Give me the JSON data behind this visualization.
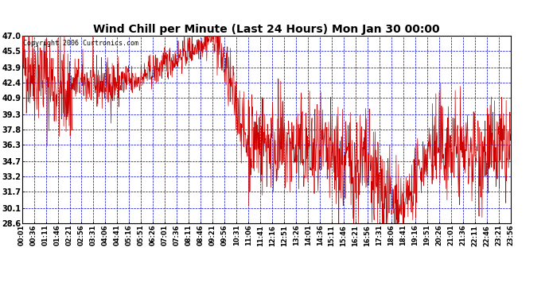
{
  "title": "Wind Chill per Minute (Last 24 Hours) Mon Jan 30 00:00",
  "copyright": "Copyright 2006 Curtronics.com",
  "line_color": "#cc0000",
  "background_color": "#ffffff",
  "grid_color": "#0000cc",
  "text_color": "#000000",
  "yticks": [
    28.6,
    30.1,
    31.7,
    33.2,
    34.7,
    36.3,
    37.8,
    39.3,
    40.9,
    42.4,
    43.9,
    45.5,
    47.0
  ],
  "ymin": 28.6,
  "ymax": 47.0,
  "xtick_labels": [
    "00:01",
    "00:36",
    "01:11",
    "01:46",
    "02:21",
    "02:56",
    "03:31",
    "04:06",
    "04:41",
    "05:16",
    "05:51",
    "06:26",
    "07:01",
    "07:36",
    "08:11",
    "08:46",
    "09:21",
    "09:56",
    "10:31",
    "11:06",
    "11:41",
    "12:16",
    "12:51",
    "13:26",
    "14:01",
    "14:36",
    "15:11",
    "15:46",
    "16:21",
    "16:56",
    "17:31",
    "18:06",
    "18:41",
    "19:16",
    "19:51",
    "20:26",
    "21:01",
    "21:36",
    "22:11",
    "22:46",
    "23:21",
    "23:56"
  ],
  "title_fontsize": 10,
  "copyright_fontsize": 6,
  "tick_fontsize": 6,
  "ytick_fontsize": 7
}
